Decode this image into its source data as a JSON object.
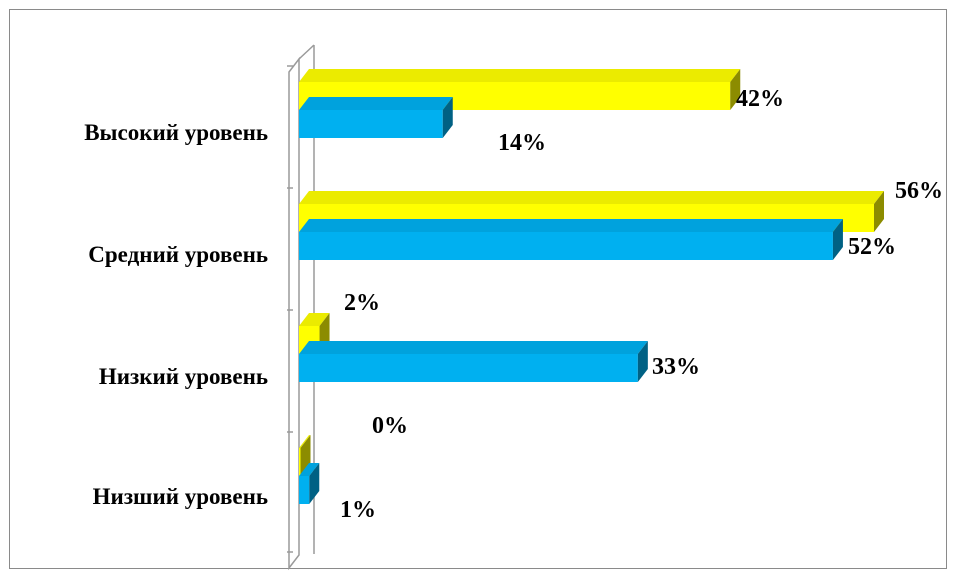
{
  "chart_data": {
    "type": "bar",
    "orientation": "horizontal",
    "style": "3d",
    "categories": [
      "Высокий уровень",
      "Средний уровень",
      "Низкий уровень",
      "Низший уровень"
    ],
    "series": [
      {
        "color": "#ffff00",
        "values": [
          42,
          56,
          2,
          0
        ],
        "labels": [
          "42%",
          "56%",
          "2%",
          "0%"
        ]
      },
      {
        "color": "#00b0f0",
        "values": [
          14,
          52,
          33,
          1
        ],
        "labels": [
          "14%",
          "52%",
          "33%",
          "1%"
        ]
      }
    ],
    "xlim": [
      0,
      56
    ],
    "grid": false,
    "legend": "none"
  }
}
